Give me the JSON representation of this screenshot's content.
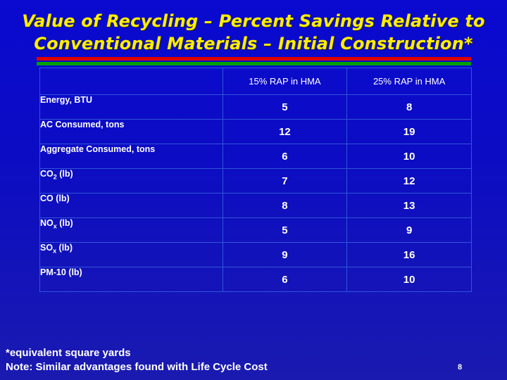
{
  "title": {
    "line1": "Value of Recycling – Percent Savings Relative to",
    "line2": "Conventional Materials – Initial Construction*"
  },
  "colors": {
    "background": "#0c0cc4",
    "title": "#ffee00",
    "rule_top": "#e00000",
    "rule_bottom": "#00a000",
    "text": "#ffffff"
  },
  "table": {
    "columns": [
      "",
      "15% RAP in HMA",
      "25% RAP in HMA"
    ],
    "rows": [
      {
        "label": "Energy, BTU",
        "label_sub": "",
        "label_suffix": "",
        "values": [
          "5",
          "8"
        ]
      },
      {
        "label": "AC Consumed, tons",
        "label_sub": "",
        "label_suffix": "",
        "values": [
          "12",
          "19"
        ]
      },
      {
        "label": "Aggregate Consumed, tons",
        "label_sub": "",
        "label_suffix": "",
        "values": [
          "6",
          "10"
        ]
      },
      {
        "label": "CO",
        "label_sub": "2",
        "label_suffix": " (lb)",
        "values": [
          "7",
          "12"
        ]
      },
      {
        "label": "CO (lb)",
        "label_sub": "",
        "label_suffix": "",
        "values": [
          "8",
          "13"
        ]
      },
      {
        "label": "NO",
        "label_sub": "x",
        "label_suffix": " (lb)",
        "values": [
          "5",
          "9"
        ]
      },
      {
        "label": "SO",
        "label_sub": "x",
        "label_suffix": " (lb)",
        "values": [
          "9",
          "16"
        ]
      },
      {
        "label": "PM-10 (lb)",
        "label_sub": "",
        "label_suffix": "",
        "values": [
          "6",
          "10"
        ]
      }
    ]
  },
  "footnote": {
    "line1": "*equivalent square yards",
    "line2": "Note: Similar advantages found with Life Cycle Cost"
  },
  "page_number": "8"
}
